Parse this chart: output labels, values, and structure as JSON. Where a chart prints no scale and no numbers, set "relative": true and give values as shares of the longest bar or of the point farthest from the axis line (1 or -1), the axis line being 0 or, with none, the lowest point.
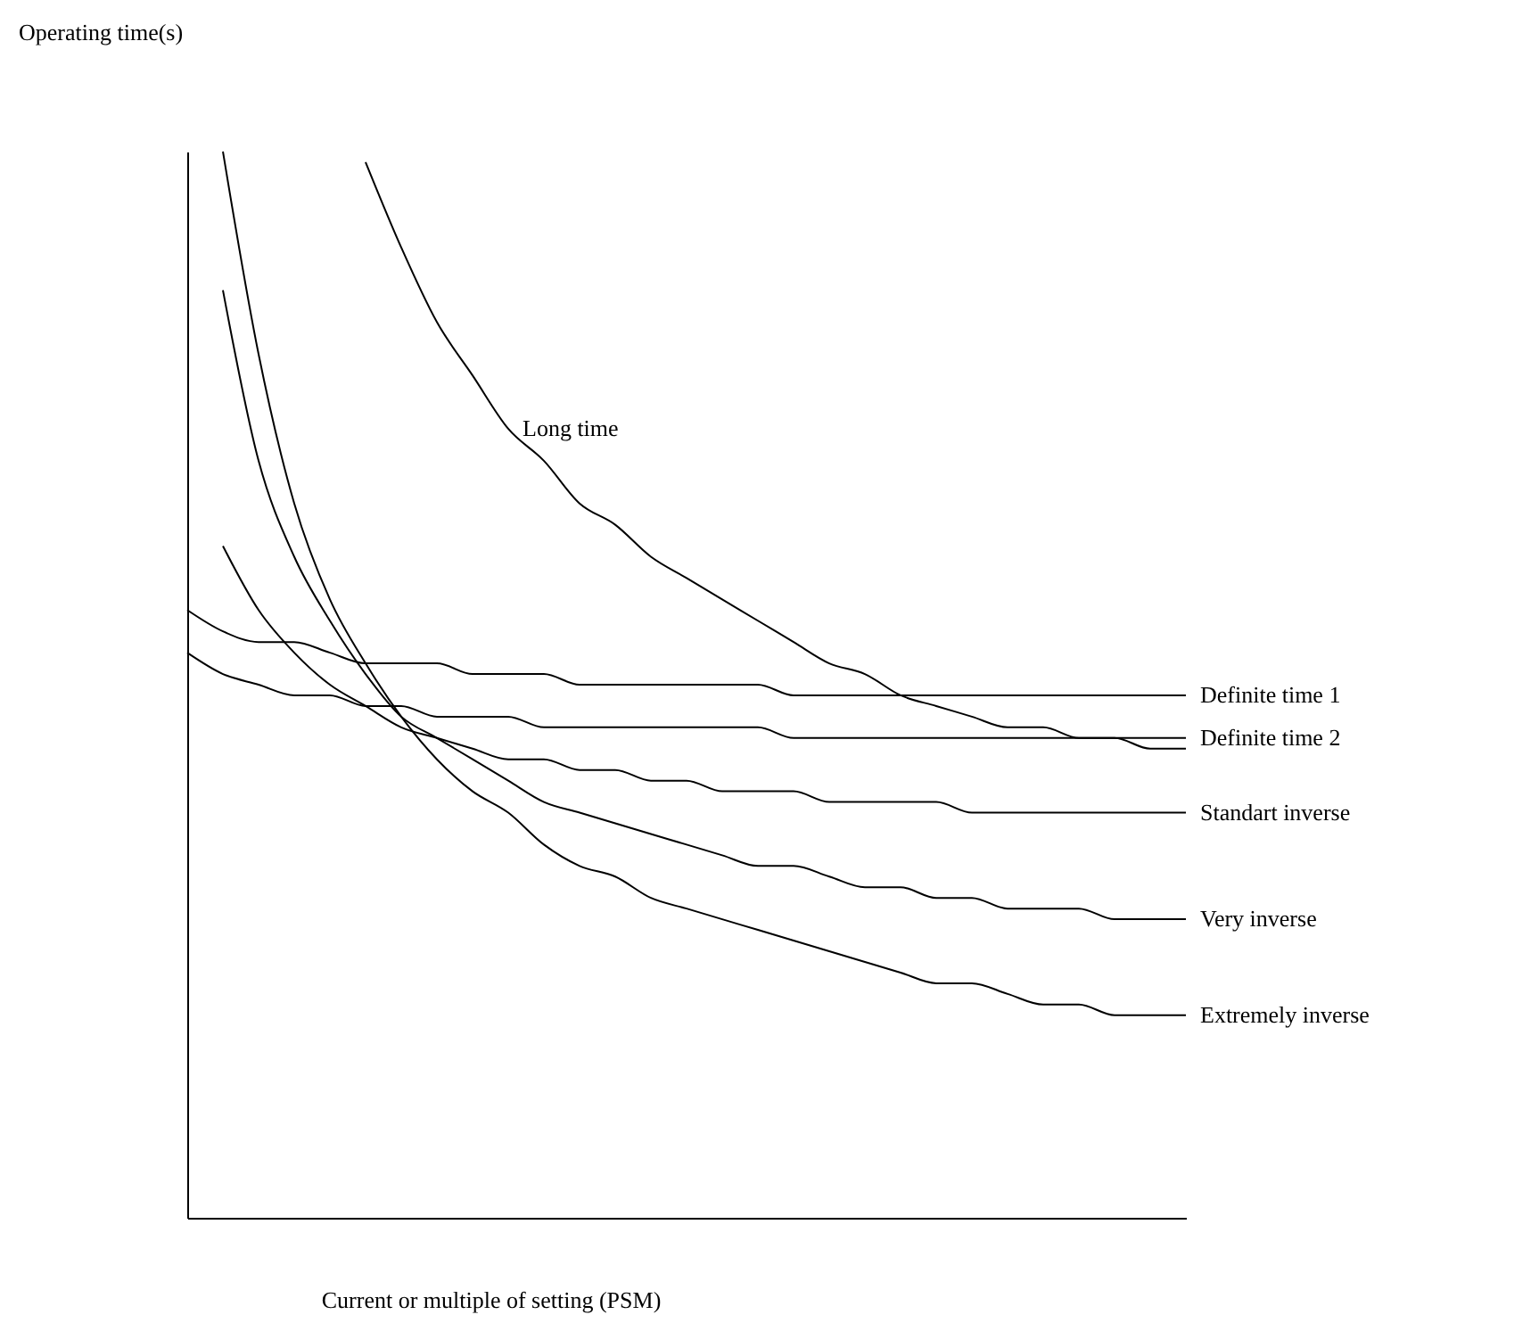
{
  "chart_data": {
    "type": "line",
    "relative": true,
    "xlabel": "Current or multiple of setting (PSM)",
    "ylabel": "Operating time(s)",
    "line_style": "solid",
    "legend": false,
    "grid": false,
    "categories": [
      null,
      null,
      null,
      null,
      null,
      null,
      null,
      null,
      null,
      null,
      null,
      null,
      null,
      null,
      null,
      null,
      null,
      null,
      null,
      null,
      null,
      null,
      null,
      null,
      null,
      null,
      null,
      null,
      null
    ],
    "series": [
      {
        "name": "Definite time 1",
        "color": "#000000",
        "values": [
          0.57,
          0.55,
          0.54,
          0.54,
          0.53,
          0.52,
          0.52,
          0.52,
          0.51,
          0.51,
          0.51,
          0.5,
          0.5,
          0.5,
          0.5,
          0.5,
          0.5,
          0.49,
          0.49,
          0.49,
          0.49,
          0.49,
          0.49,
          0.49,
          0.49,
          0.49,
          0.49,
          0.49,
          0.49
        ]
      },
      {
        "name": "Definite time 2",
        "color": "#000000",
        "values": [
          0.53,
          0.51,
          0.5,
          0.49,
          0.49,
          0.48,
          0.48,
          0.47,
          0.47,
          0.47,
          0.46,
          0.46,
          0.46,
          0.46,
          0.46,
          0.46,
          0.46,
          0.45,
          0.45,
          0.45,
          0.45,
          0.45,
          0.45,
          0.45,
          0.45,
          0.45,
          0.45,
          0.45,
          0.45
        ]
      },
      {
        "name": "Standart inverse",
        "color": "#000000",
        "values": [
          null,
          0.63,
          0.57,
          0.53,
          0.5,
          0.48,
          0.46,
          0.45,
          0.44,
          0.43,
          0.43,
          0.42,
          0.42,
          0.41,
          0.41,
          0.4,
          0.4,
          0.4,
          0.39,
          0.39,
          0.39,
          0.39,
          0.38,
          0.38,
          0.38,
          0.38,
          0.38,
          0.38,
          0.38
        ]
      },
      {
        "name": "Very inverse",
        "color": "#000000",
        "values": [
          null,
          0.87,
          0.71,
          0.62,
          0.56,
          0.51,
          0.47,
          0.45,
          0.43,
          0.41,
          0.39,
          0.38,
          0.37,
          0.36,
          0.35,
          0.34,
          0.33,
          0.33,
          0.32,
          0.31,
          0.31,
          0.3,
          0.3,
          0.29,
          0.29,
          0.29,
          0.28,
          0.28,
          0.28
        ]
      },
      {
        "name": "Extremely inverse",
        "color": "#000000",
        "values": [
          null,
          1.0,
          0.81,
          0.67,
          0.58,
          0.52,
          0.47,
          0.43,
          0.4,
          0.38,
          0.35,
          0.33,
          0.32,
          0.3,
          0.29,
          0.28,
          0.27,
          0.26,
          0.25,
          0.24,
          0.23,
          0.22,
          0.22,
          0.21,
          0.2,
          0.2,
          0.19,
          0.19,
          0.19
        ]
      },
      {
        "name": "Long time",
        "color": "#000000",
        "values": [
          null,
          null,
          null,
          null,
          null,
          0.99,
          0.91,
          0.84,
          0.79,
          0.74,
          0.71,
          0.67,
          0.65,
          0.62,
          0.6,
          0.58,
          0.56,
          0.54,
          0.52,
          0.51,
          0.49,
          0.48,
          0.47,
          0.46,
          0.46,
          0.45,
          0.45,
          0.44,
          0.44
        ]
      }
    ]
  }
}
